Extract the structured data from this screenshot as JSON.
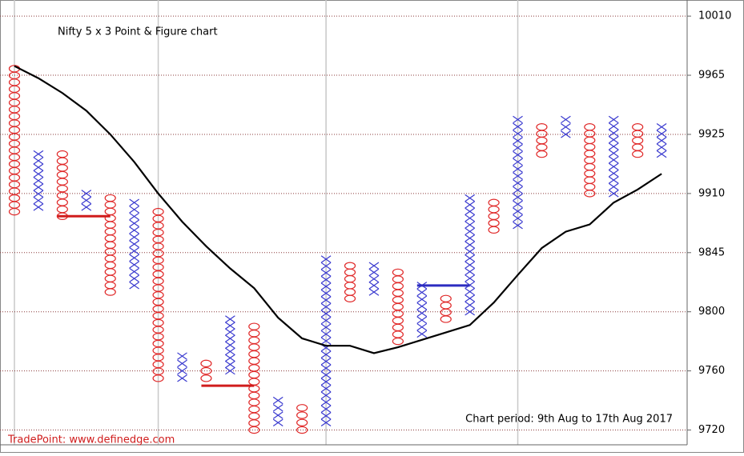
{
  "chart_data": {
    "type": "point-and-figure",
    "title": "Nifty 5 x 3 Point & Figure chart",
    "period_note": "Chart period: 9th Aug to 17th Aug 2017",
    "source": "TradePoint: www.definedge.com",
    "ylim": [
      9710,
      10018
    ],
    "yticks": [
      9720,
      9760,
      9800,
      9845,
      9910,
      9925,
      9965,
      10010
    ],
    "x_color": "#3a3acf",
    "o_color": "#e02828",
    "ma_color": "#000000",
    "x_grid_columns": [
      0,
      6,
      13,
      21
    ],
    "columns": [
      {
        "type": "O",
        "high": 9970,
        "low": 9890
      },
      {
        "type": "X",
        "high": 9920,
        "low": 9895
      },
      {
        "type": "O",
        "high": 9920,
        "low": 9885
      },
      {
        "type": "X",
        "high": 9910,
        "low": 9895
      },
      {
        "type": "O",
        "high": 9905,
        "low": 9815
      },
      {
        "type": "X",
        "high": 9900,
        "low": 9820
      },
      {
        "type": "O",
        "high": 9890,
        "low": 9755
      },
      {
        "type": "X",
        "high": 9770,
        "low": 9755
      },
      {
        "type": "O",
        "high": 9765,
        "low": 9755
      },
      {
        "type": "X",
        "high": 9795,
        "low": 9760
      },
      {
        "type": "O",
        "high": 9790,
        "low": 9720
      },
      {
        "type": "X",
        "high": 9740,
        "low": 9725
      },
      {
        "type": "O",
        "high": 9735,
        "low": 9720
      },
      {
        "type": "X",
        "high": 9840,
        "low": 9725
      },
      {
        "type": "O",
        "high": 9835,
        "low": 9810
      },
      {
        "type": "X",
        "high": 9835,
        "low": 9815
      },
      {
        "type": "O",
        "high": 9830,
        "low": 9780
      },
      {
        "type": "X",
        "high": 9820,
        "low": 9785
      },
      {
        "type": "O",
        "high": 9810,
        "low": 9795
      },
      {
        "type": "X",
        "high": 9905,
        "low": 9800
      },
      {
        "type": "O",
        "high": 9900,
        "low": 9870
      },
      {
        "type": "X",
        "high": 9935,
        "low": 9875
      },
      {
        "type": "O",
        "high": 9930,
        "low": 9920
      },
      {
        "type": "X",
        "high": 9935,
        "low": 9925
      },
      {
        "type": "O",
        "high": 9930,
        "low": 9910
      },
      {
        "type": "X",
        "high": 9935,
        "low": 9910
      },
      {
        "type": "O",
        "high": 9930,
        "low": 9920
      },
      {
        "type": "X",
        "high": 9930,
        "low": 9920
      }
    ],
    "moving_average": [
      9972,
      9963,
      9953,
      9941,
      9925,
      9918,
      9910,
      9879,
      9852,
      9833,
      9818,
      9796,
      9782,
      9777,
      9777,
      9772,
      9776,
      9781,
      9786,
      9791,
      9807,
      9828,
      9850,
      9868,
      9876,
      9900,
      9911,
      9915
    ],
    "levels": [
      {
        "value": 9885,
        "color": "#d01c1c",
        "columns": [
          2,
          4
        ]
      },
      {
        "value": 9750,
        "color": "#d01c1c",
        "columns": [
          8,
          10
        ]
      },
      {
        "value": 9820,
        "color": "#2c2cc0",
        "columns": [
          17,
          19
        ]
      }
    ]
  }
}
